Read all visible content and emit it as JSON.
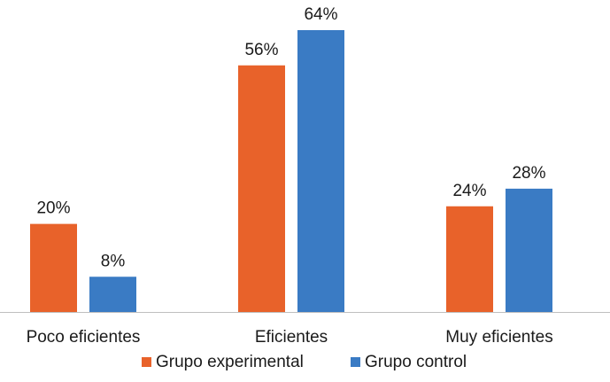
{
  "chart_data": {
    "type": "bar",
    "title": "",
    "xlabel": "",
    "ylabel": "",
    "categories": [
      "Poco eficientes",
      "Eficientes",
      "Muy eficientes"
    ],
    "series": [
      {
        "name": "Grupo experimental",
        "values": [
          20,
          56,
          24
        ],
        "labels": [
          "20%",
          "56%",
          "24%"
        ],
        "color": "#E8622A"
      },
      {
        "name": "Grupo control",
        "values": [
          8,
          64,
          28
        ],
        "labels": [
          "8%",
          "64%",
          "28%"
        ],
        "color": "#3A7BC4"
      }
    ],
    "ylim": [
      0,
      64
    ],
    "grid": false,
    "legend_position": "bottom",
    "axis_color": "#bfbfbf"
  }
}
